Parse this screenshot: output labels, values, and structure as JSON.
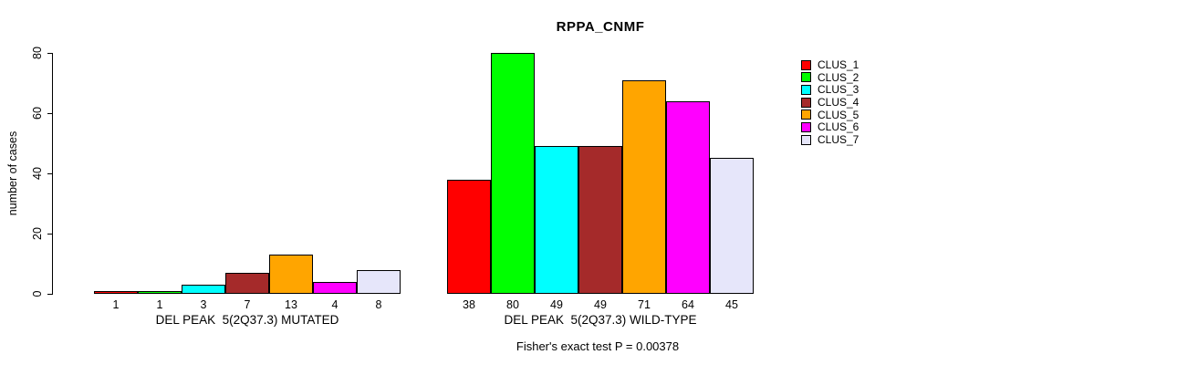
{
  "chart_data": {
    "type": "bar",
    "title": "RPPA_CNMF",
    "ylabel": "number of cases",
    "xlabel": "",
    "ylim": [
      0,
      80
    ],
    "yticks": [
      0,
      20,
      40,
      60,
      80
    ],
    "grid": false,
    "legend_position": "right",
    "clusters": [
      {
        "name": "CLUS_1",
        "color": "#FF0000"
      },
      {
        "name": "CLUS_2",
        "color": "#00FF00"
      },
      {
        "name": "CLUS_3",
        "color": "#00FFFF"
      },
      {
        "name": "CLUS_4",
        "color": "#A52A2A"
      },
      {
        "name": "CLUS_5",
        "color": "#FFA500"
      },
      {
        "name": "CLUS_6",
        "color": "#FF00FF"
      },
      {
        "name": "CLUS_7",
        "color": "#E6E6FA"
      }
    ],
    "groups": [
      {
        "label": "DEL PEAK  5(2Q37.3) MUTATED",
        "values": [
          1,
          1,
          3,
          7,
          13,
          4,
          8
        ]
      },
      {
        "label": "DEL PEAK  5(2Q37.3) WILD-TYPE",
        "values": [
          38,
          80,
          49,
          49,
          71,
          64,
          45
        ]
      }
    ],
    "footnote": "Fisher's exact test P = 0.00378"
  }
}
